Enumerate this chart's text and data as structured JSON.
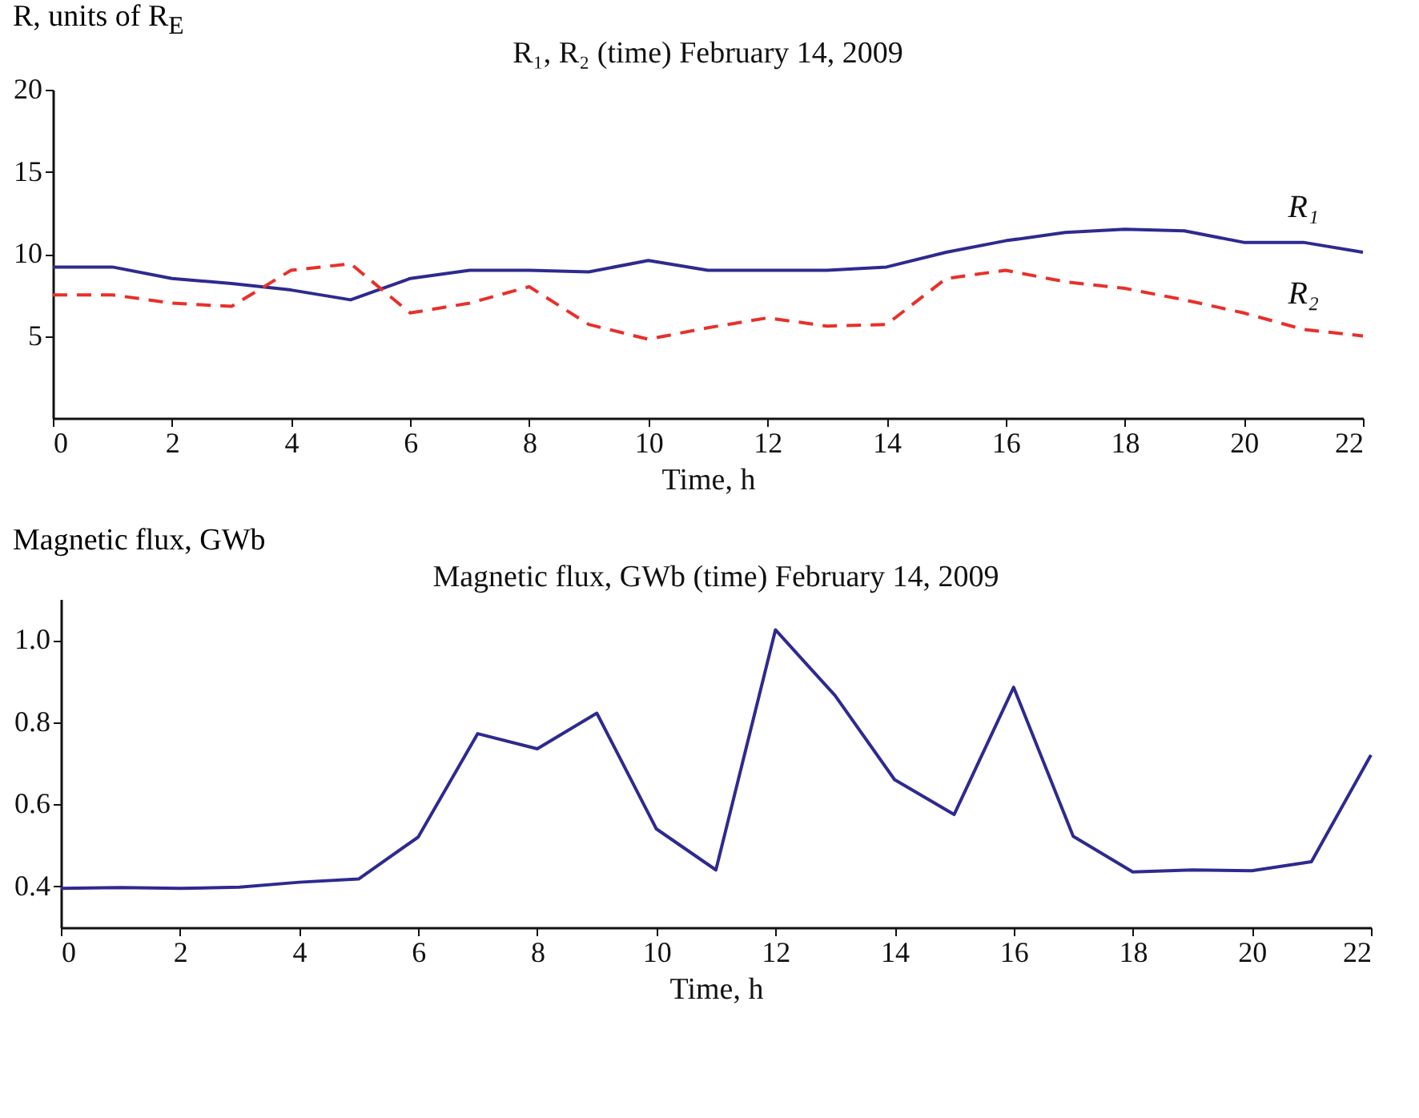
{
  "chart_data": [
    {
      "type": "line",
      "title": "R₁, R₂ (time) February 14, 2009",
      "xlabel": "Time, h",
      "ylabel": "R, units of R$_{E}$",
      "x": [
        0,
        1,
        2,
        3,
        4,
        5,
        6,
        7,
        8,
        9,
        10,
        11,
        12,
        13,
        14,
        15,
        16,
        17,
        18,
        19,
        20,
        21,
        22
      ],
      "series": [
        {
          "name": "R₁",
          "color": "#2e2a8f",
          "line_style": "solid",
          "values": [
            9.2,
            9.2,
            8.5,
            8.2,
            7.8,
            7.2,
            8.5,
            9.0,
            9.0,
            8.9,
            9.6,
            9.0,
            9.0,
            9.0,
            9.2,
            10.1,
            10.8,
            11.3,
            11.5,
            11.4,
            10.7,
            10.7,
            10.1
          ]
        },
        {
          "name": "R₂",
          "color": "#e8302a",
          "line_style": "dashed",
          "values": [
            7.5,
            7.5,
            7.0,
            6.8,
            9.0,
            9.4,
            6.4,
            7.0,
            8.0,
            5.7,
            4.8,
            5.5,
            6.1,
            5.6,
            5.7,
            8.5,
            9.0,
            8.3,
            7.9,
            7.2,
            6.4,
            5.4,
            5.0
          ]
        }
      ],
      "xlim": [
        0,
        22
      ],
      "xticks": [
        0,
        2,
        4,
        6,
        8,
        10,
        12,
        14,
        16,
        18,
        20,
        22
      ],
      "ylim": [
        0,
        20
      ],
      "yticks": [
        5,
        10,
        15,
        20
      ],
      "grid": false
    },
    {
      "type": "line",
      "title": "Magnetic flux, GWb  (time) February 14, 2009",
      "xlabel": "Time, h",
      "ylabel": "Magnetic flux, GWb",
      "x": [
        0,
        1,
        2,
        3,
        4,
        5,
        6,
        7,
        8,
        9,
        10,
        11,
        12,
        13,
        14,
        15,
        16,
        17,
        18,
        19,
        20,
        21,
        22
      ],
      "series": [
        {
          "color": "#2e2a8f",
          "line_style": "solid",
          "values": [
            0.395,
            0.397,
            0.395,
            0.398,
            0.41,
            0.418,
            0.52,
            0.772,
            0.735,
            0.822,
            0.54,
            0.44,
            1.025,
            0.865,
            0.66,
            0.575,
            0.885,
            0.522,
            0.435,
            0.44,
            0.438,
            0.46,
            0.72
          ]
        }
      ],
      "xlim": [
        0,
        22
      ],
      "xticks": [
        0,
        2,
        4,
        6,
        8,
        10,
        12,
        14,
        16,
        18,
        20,
        22
      ],
      "ylim": [
        0.3,
        1.1
      ],
      "yticks": [
        0.4,
        0.6,
        0.8,
        {
          "value": 1.0,
          "label": "1.0"
        }
      ],
      "grid": false
    }
  ]
}
